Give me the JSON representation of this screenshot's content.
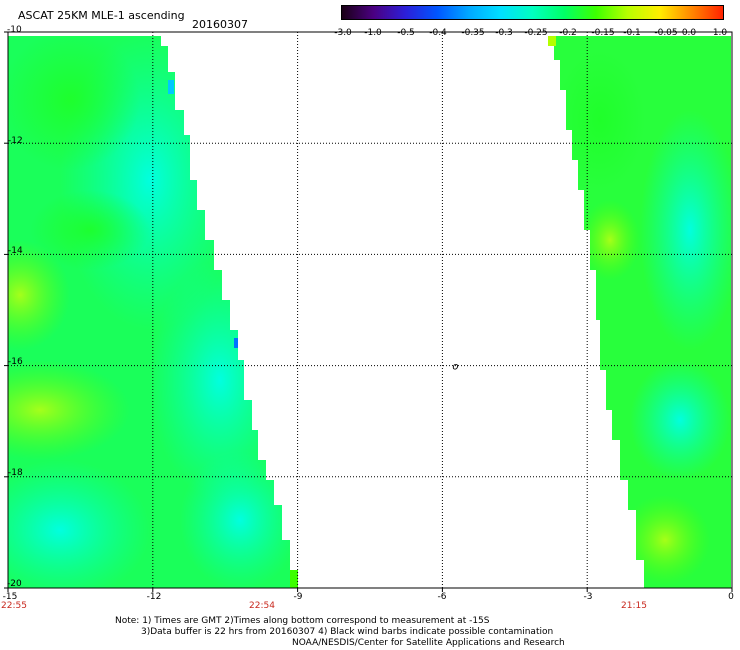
{
  "header": {
    "title": "ASCAT 25KM MLE-1 ascending",
    "date": "20160307"
  },
  "colorbar": {
    "labels": [
      "-3.0",
      "-1.0",
      "-0.5",
      "-0.4",
      "-0.35",
      "-0.3",
      "-0.25",
      "-0.2",
      "-0.15",
      "-0.1",
      "-0.05",
      "0.0",
      "1.0"
    ],
    "colors": [
      "#1a0016",
      "#4b0082",
      "#2c1fd9",
      "#0056ff",
      "#00a8ff",
      "#00e0ff",
      "#00ffc0",
      "#00ff66",
      "#3dff00",
      "#b8ff00",
      "#ffee00",
      "#ff8800",
      "#ff2200"
    ]
  },
  "axes": {
    "lat_labels": [
      "-10",
      "-12",
      "-14",
      "-16",
      "-18",
      "-20"
    ],
    "lon_labels": [
      "-15",
      "-12",
      "-9",
      "-6",
      "-3",
      "0"
    ],
    "time_labels": [
      "22:55",
      "22:54",
      "21:15"
    ]
  },
  "map": {
    "lat_range": [
      -20,
      -10
    ],
    "lon_range": [
      -15,
      0
    ],
    "grid": true,
    "marker": {
      "text": "o",
      "lat": -16,
      "lon": -6
    }
  },
  "notes": {
    "line1": "Note: 1) Times are GMT 2)Times along bottom correspond to measurement at -15S",
    "line2": "3)Data buffer is 22 hrs from 20160307 4) Black wind barbs indicate possible contamination",
    "credit": "NOAA/NESDIS/Center for Satellite Applications and Research"
  },
  "style": {
    "time_label_color": "#c8281e",
    "swath_base_color": "#00ff66",
    "swath_cyan_color": "#00ffe0"
  }
}
